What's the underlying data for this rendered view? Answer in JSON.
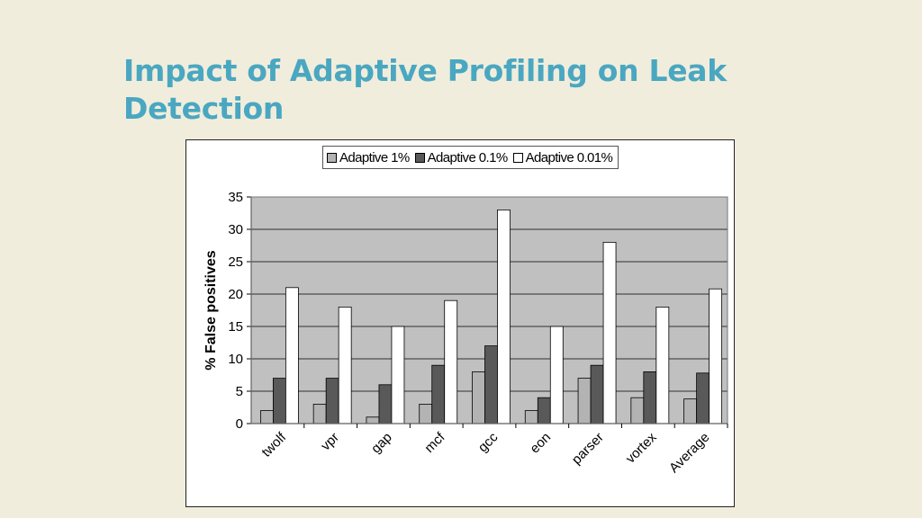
{
  "slide": {
    "title": "Impact of Adaptive Profiling on Leak Detection"
  },
  "colors": {
    "title": "#4aa7c1",
    "background": "#f1eddc",
    "plot_area": "#c0c0c0",
    "series": [
      "#b3b3b3",
      "#595959",
      "#ffffff"
    ]
  },
  "chart_data": {
    "type": "bar",
    "title": "",
    "xlabel": "",
    "ylabel": "% False positives",
    "ylim": [
      0,
      35
    ],
    "yticks": [
      0,
      5,
      10,
      15,
      20,
      25,
      30,
      35
    ],
    "grid": true,
    "legend_position": "top",
    "categories": [
      "twolf",
      "vpr",
      "gap",
      "mcf",
      "gcc",
      "eon",
      "parser",
      "vortex",
      "Average"
    ],
    "series": [
      {
        "name": "Adaptive 1%",
        "values": [
          2,
          3,
          1,
          3,
          8,
          2,
          7,
          4,
          3.8
        ]
      },
      {
        "name": "Adaptive 0.1%",
        "values": [
          7,
          7,
          6,
          9,
          12,
          4,
          9,
          8,
          7.8
        ]
      },
      {
        "name": "Adaptive 0.01%",
        "values": [
          21,
          18,
          15,
          19,
          33,
          15,
          28,
          18,
          20.8
        ]
      }
    ]
  }
}
